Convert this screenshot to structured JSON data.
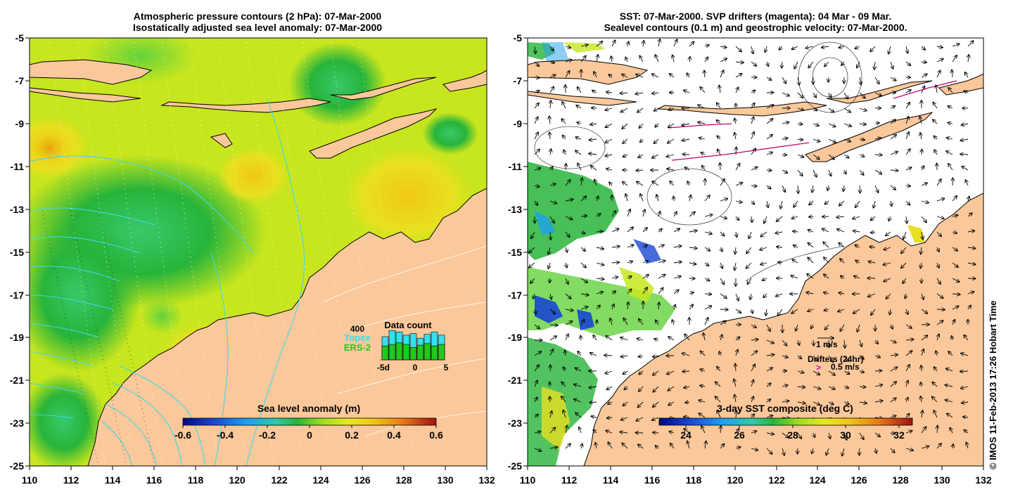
{
  "left_panel": {
    "title_line1": "Atmospheric pressure contours (2 hPa): 07-Mar-2000",
    "title_line2": "Isostatically adjusted sea level anomaly: 07-Mar-2000",
    "colorbar": {
      "title": "Sea level anomaly (m)",
      "range": [
        -0.6,
        0.6
      ],
      "ticks": [
        "-0.6",
        "-0.4",
        "-0.2",
        "0",
        "0.2",
        "0.4",
        "0.6"
      ]
    },
    "data_count": {
      "title": "Data count",
      "max_label": "400",
      "series": [
        {
          "name": "Topex",
          "color": "#33e0f0",
          "values": [
            300,
            380,
            360,
            320,
            340,
            280,
            330,
            360,
            320
          ]
        },
        {
          "name": "ERS-2",
          "color": "#22c81e",
          "values": [
            180,
            200,
            220,
            200,
            160,
            190,
            210,
            180,
            200
          ]
        }
      ],
      "axis_ticks": [
        "-5d",
        "0",
        "5"
      ]
    }
  },
  "right_panel": {
    "title_line1": "SST: 07-Mar-2000. SVP drifters (magenta): 04 Mar - 09 Mar.",
    "title_line2": "Sealevel contours (0.1 m) and geostrophic velocity: 07-Mar-2000.",
    "colorbar": {
      "title": "3-day SST composite (deg C)",
      "range": [
        23,
        32.5
      ],
      "ticks": [
        "24",
        "26",
        "28",
        "30",
        "32"
      ]
    },
    "legend": {
      "velocity_label": "1 m/s",
      "drifters_label": "Drifters (24hr)",
      "drifter_speed_label": "0.5 m/s",
      "drifter_symbol": ">"
    }
  },
  "axes": {
    "lon_ticks": [
      "110",
      "112",
      "114",
      "116",
      "118",
      "120",
      "122",
      "124",
      "126",
      "128",
      "130",
      "132"
    ],
    "lat_ticks": [
      "-5",
      "-7",
      "-9",
      "-11",
      "-13",
      "-15",
      "-17",
      "-19",
      "-21",
      "-23",
      "-25"
    ],
    "lon_range": [
      110,
      132
    ],
    "lat_range": [
      -25,
      -5
    ]
  },
  "credit": "© IMOS 11-Feb-2013 17:26 Hobart Time",
  "colors": {
    "land": "#fac89a",
    "ocean_anomaly_base": "#c8e61e",
    "no_data": "#ffffff",
    "pressure_contour": "#40d8e8",
    "drifter": "#c00060"
  }
}
